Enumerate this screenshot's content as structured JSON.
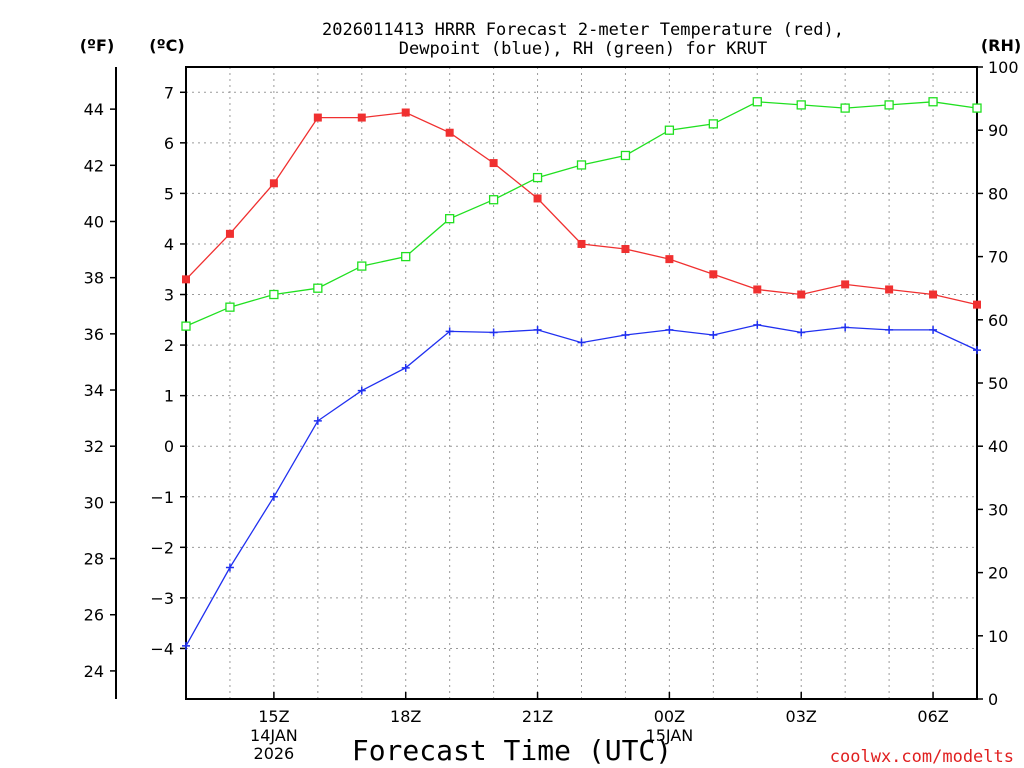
{
  "chart_data": {
    "type": "line",
    "title": [
      "2026011413 HRRR Forecast 2-meter Temperature (red),",
      "Dewpoint (blue), RH (green) for KRUT"
    ],
    "xlabel": "Forecast Time (UTC)",
    "units": {
      "fahrenheit": "(ºF)",
      "celsius": "(ºC)",
      "rh": "(RH)"
    },
    "x_hours": [
      13,
      14,
      15,
      16,
      17,
      18,
      19,
      20,
      21,
      22,
      23,
      24,
      25,
      26,
      27,
      28,
      29,
      30,
      31
    ],
    "xlim": [
      13,
      31
    ],
    "x_ticks": [
      {
        "hour": 15,
        "label": "15Z"
      },
      {
        "hour": 18,
        "label": "18Z"
      },
      {
        "hour": 21,
        "label": "21Z"
      },
      {
        "hour": 24,
        "label": "00Z"
      },
      {
        "hour": 27,
        "label": "03Z"
      },
      {
        "hour": 30,
        "label": "06Z"
      }
    ],
    "x_date_labels": [
      {
        "hour": 15,
        "lines": [
          "14JAN",
          "2026"
        ]
      },
      {
        "hour": 24,
        "lines": [
          "15JAN"
        ]
      }
    ],
    "ylim_c": [
      -5,
      7.5
    ],
    "ylim_rh": [
      0,
      100
    ],
    "y_ticks_c": [
      -4,
      -3,
      -2,
      -1,
      0,
      1,
      2,
      3,
      4,
      5,
      6,
      7
    ],
    "y_ticks_f": [
      24,
      26,
      28,
      30,
      32,
      34,
      36,
      38,
      40,
      42,
      44
    ],
    "y_ticks_rh": [
      0,
      10,
      20,
      30,
      40,
      50,
      60,
      70,
      80,
      90,
      100
    ],
    "series": [
      {
        "name": "Temperature",
        "axis": "c",
        "color": "#f03030",
        "marker": "filled-square",
        "values": [
          3.3,
          4.2,
          5.2,
          6.5,
          6.5,
          6.6,
          6.2,
          5.6,
          4.9,
          4.0,
          3.9,
          3.7,
          3.4,
          3.1,
          3.0,
          3.2,
          3.1,
          3.0,
          2.8
        ]
      },
      {
        "name": "Dewpoint",
        "axis": "c",
        "color": "#2030f0",
        "marker": "plus",
        "values": [
          -3.95,
          -2.4,
          -1.0,
          0.5,
          1.1,
          1.55,
          2.27,
          2.25,
          2.3,
          2.05,
          2.2,
          2.3,
          2.2,
          2.4,
          2.25,
          2.35,
          2.3,
          2.3,
          1.9
        ]
      },
      {
        "name": "RH",
        "axis": "rh",
        "color": "#20e020",
        "marker": "open-square",
        "values": [
          59,
          62,
          64,
          65,
          68.5,
          70,
          76,
          79,
          82.5,
          84.5,
          86,
          90,
          91,
          94.5,
          94,
          93.5,
          94,
          94.5,
          93.5
        ]
      }
    ],
    "credit": "coolwx.com/modelts",
    "credit_color": "#e02020"
  }
}
